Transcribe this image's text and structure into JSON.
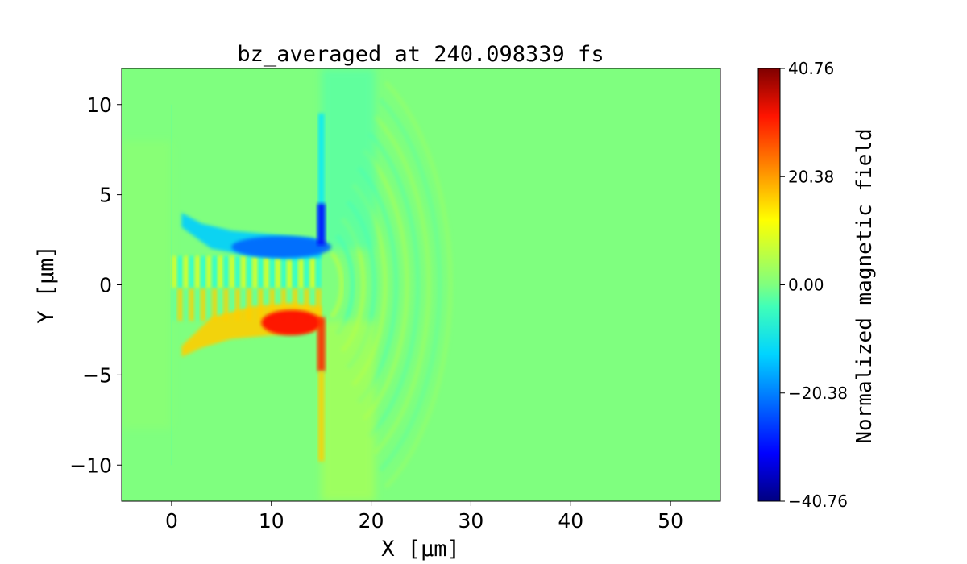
{
  "chart_data": {
    "type": "heatmap",
    "title": "bz_averaged at 240.098339 fs",
    "xlabel": "X [μm]",
    "ylabel": "Y [μm]",
    "xlim": [
      -5,
      55
    ],
    "ylim": [
      -12,
      12
    ],
    "x_ticks": [
      0,
      10,
      20,
      30,
      40,
      50
    ],
    "x_tick_labels": [
      "0",
      "10",
      "20",
      "30",
      "40",
      "50"
    ],
    "y_ticks": [
      -10,
      -5,
      0,
      5,
      10
    ],
    "y_tick_labels": [
      "−10",
      "−5",
      "0",
      "5",
      "10"
    ],
    "colormap": "jet",
    "colorbar": {
      "label": "Normalized magnetic field",
      "min": -40.76,
      "max": 40.76,
      "ticks": [
        40.76,
        20.38,
        0.0,
        -20.38,
        -40.76
      ],
      "tick_labels": [
        "40.76",
        "20.38",
        "0.00",
        "−20.38",
        "−40.76"
      ]
    },
    "grid": false,
    "background_value": 0.0,
    "features": {
      "target_front_x": 0,
      "target_rear_x": 15,
      "channel_y_range": [
        -3,
        3
      ],
      "negative_lobe": {
        "x_range": [
          5,
          15
        ],
        "y": 2.3,
        "min_value": -30
      },
      "positive_lobe": {
        "x_range": [
          9,
          15
        ],
        "y": -2.2,
        "max_value": 30
      },
      "wavefronts_x_range": [
        15,
        27
      ]
    }
  }
}
